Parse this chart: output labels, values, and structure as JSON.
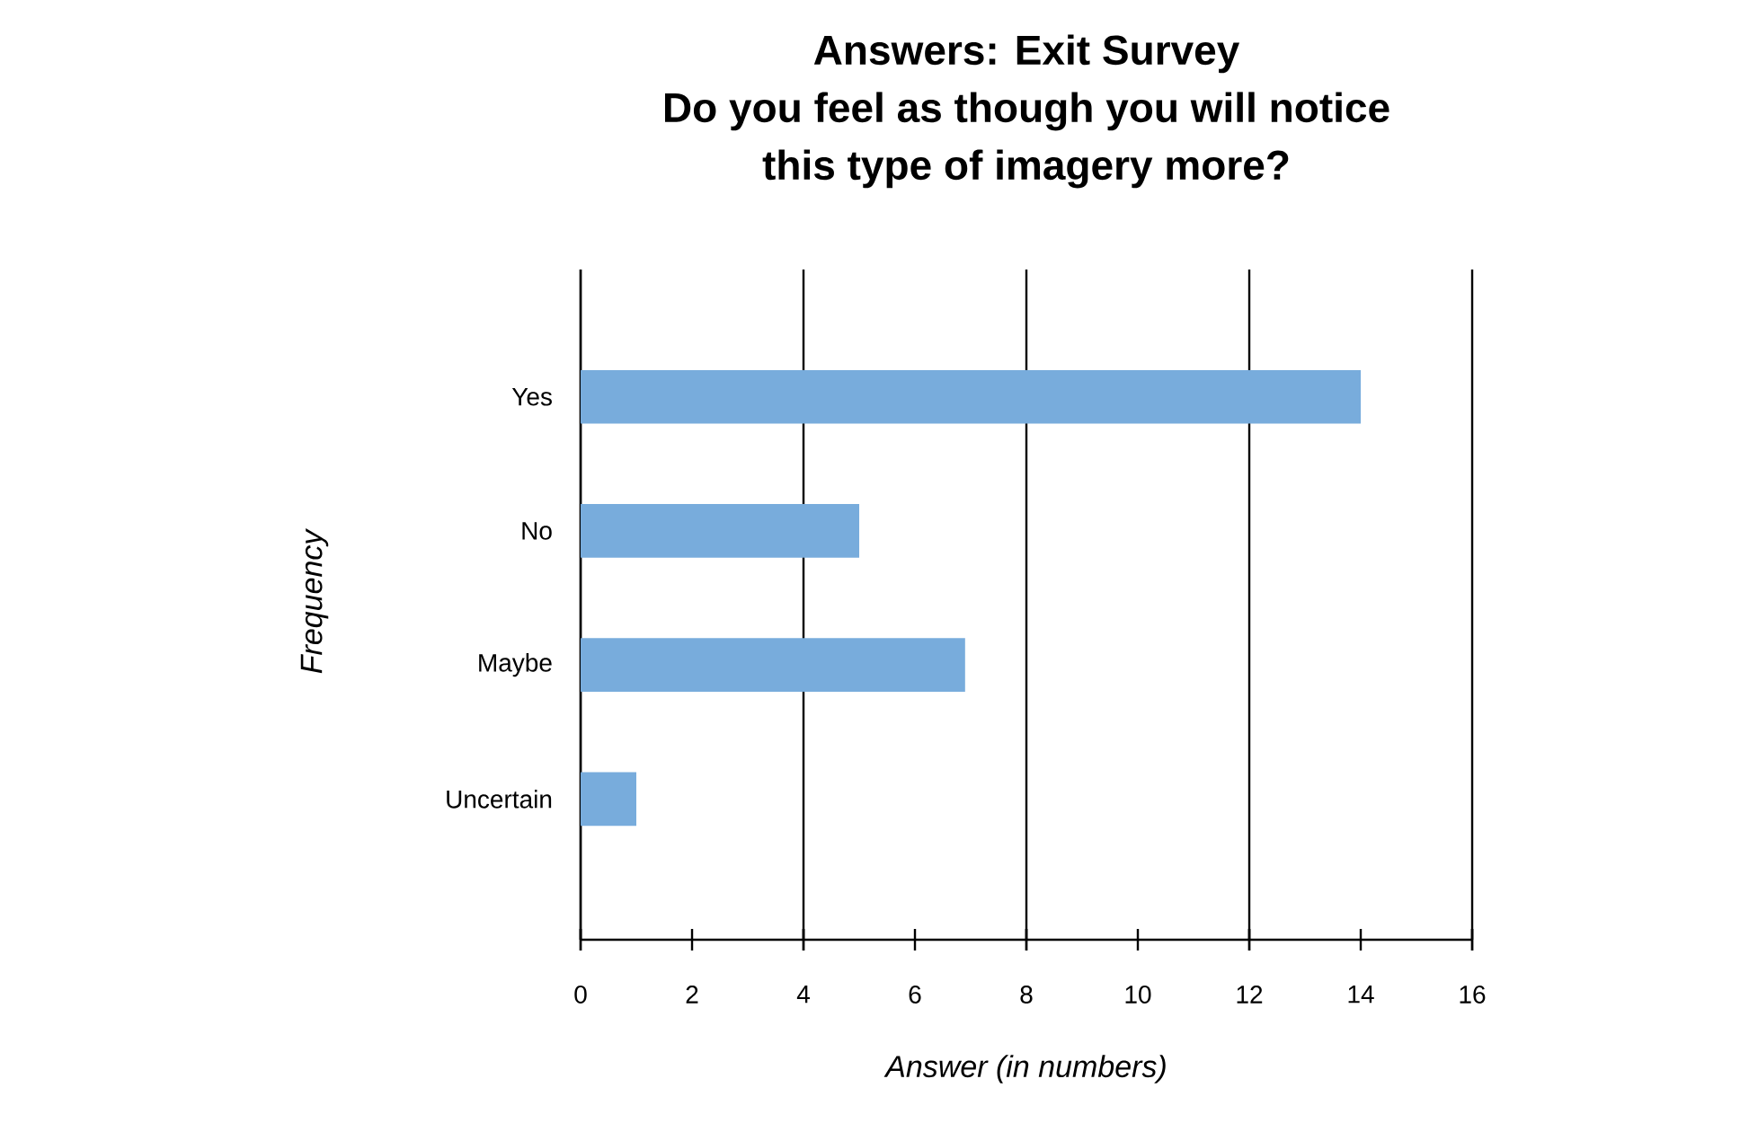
{
  "chart_data": {
    "type": "bar",
    "orientation": "horizontal",
    "title": "Answers: Exit Survey\nDo you feel as though you will notice\nthis type of imagery more?",
    "xlabel": "Answer (in numbers)",
    "ylabel": "Frequency",
    "categories": [
      "Yes",
      "No",
      "Maybe",
      "Uncertain"
    ],
    "values": [
      14,
      5,
      6.9,
      1
    ],
    "color": "#78acdc",
    "xlim": [
      0,
      16
    ],
    "xticks": [
      0,
      2,
      4,
      6,
      8,
      10,
      12,
      14,
      16
    ],
    "grid": "x"
  }
}
